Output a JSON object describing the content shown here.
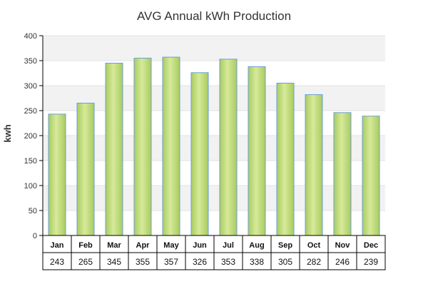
{
  "chart_data": {
    "type": "bar",
    "title": "AVG Annual kWh Production",
    "ylabel": "kwh",
    "xlabel": "",
    "ylim": [
      0,
      400
    ],
    "yticks": [
      0,
      50,
      100,
      150,
      200,
      250,
      300,
      350,
      400
    ],
    "grid": true,
    "categories": [
      "Jan",
      "Feb",
      "Mar",
      "Apr",
      "May",
      "Jun",
      "Jul",
      "Aug",
      "Sep",
      "Oct",
      "Nov",
      "Dec"
    ],
    "values": [
      243,
      265,
      345,
      355,
      357,
      326,
      353,
      338,
      305,
      282,
      246,
      239
    ],
    "table_values": [
      "243",
      "265",
      "345",
      "355",
      "357",
      "326",
      "353",
      "338",
      "305",
      "282",
      "246",
      "239"
    ],
    "colors": {
      "bar_fill": "#a9cb5f",
      "bar_highlight": "#d6ea9a",
      "bar_stroke": "#6b9fd6",
      "band": "#f2f2f2",
      "axis": "#000000",
      "text": "#333333"
    }
  }
}
